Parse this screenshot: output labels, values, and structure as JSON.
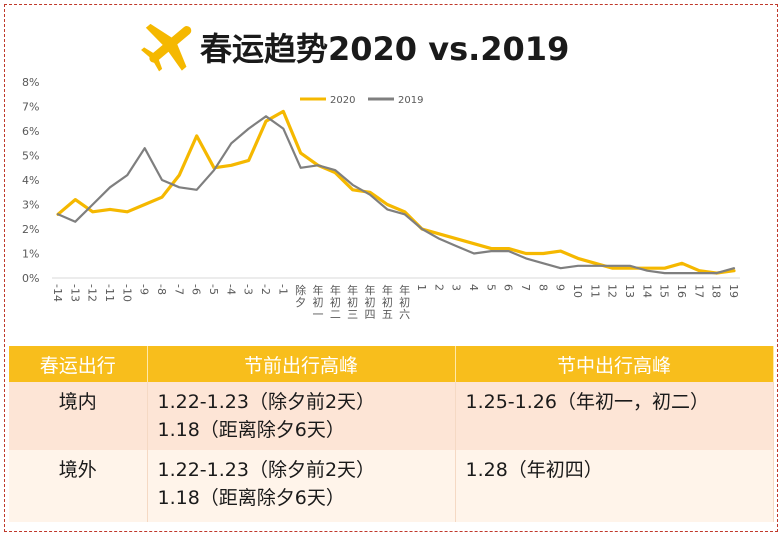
{
  "title": "春运趋势2020 vs.2019",
  "colors": {
    "series2020": "#f5b800",
    "series2019": "#7f7f7f",
    "table_header": "#f8be1c",
    "border": "#c0392b"
  },
  "icon": "airplane-icon",
  "chart_data": {
    "type": "line",
    "title": "春运趋势2020 vs.2019",
    "categories": [
      "-14",
      "-13",
      "-12",
      "-11",
      "-10",
      "-9",
      "-8",
      "-7",
      "-6",
      "-5",
      "-4",
      "-3",
      "-2",
      "-1",
      "除夕",
      "年初一",
      "年初二",
      "年初三",
      "年初四",
      "年初五",
      "年初六",
      "1",
      "2",
      "3",
      "4",
      "5",
      "6",
      "7",
      "8",
      "9",
      "10",
      "11",
      "12",
      "13",
      "14",
      "15",
      "16",
      "17",
      "18",
      "19"
    ],
    "ylim": [
      0,
      8
    ],
    "yticks": [
      "0%",
      "1%",
      "2%",
      "3%",
      "4%",
      "5%",
      "6%",
      "7%",
      "8%"
    ],
    "legend_position": "top-right",
    "grid": false,
    "series": [
      {
        "name": "2020",
        "values": [
          2.6,
          3.2,
          2.7,
          2.8,
          2.7,
          3.0,
          3.3,
          4.2,
          5.8,
          4.5,
          4.6,
          4.8,
          6.4,
          6.8,
          5.1,
          4.6,
          4.3,
          3.6,
          3.5,
          3.0,
          2.7,
          2.0,
          1.8,
          1.6,
          1.4,
          1.2,
          1.2,
          1.0,
          1.0,
          1.1,
          0.8,
          0.6,
          0.4,
          0.4,
          0.4,
          0.4,
          0.6,
          0.3,
          0.2,
          0.3
        ]
      },
      {
        "name": "2019",
        "values": [
          2.6,
          2.3,
          3.0,
          3.7,
          4.2,
          5.3,
          4.0,
          3.7,
          3.6,
          4.4,
          5.5,
          6.1,
          6.6,
          6.1,
          4.5,
          4.6,
          4.4,
          3.8,
          3.4,
          2.8,
          2.6,
          2.0,
          1.6,
          1.3,
          1.0,
          1.1,
          1.1,
          0.8,
          0.6,
          0.4,
          0.5,
          0.5,
          0.5,
          0.5,
          0.3,
          0.2,
          0.2,
          0.2,
          0.2,
          0.4
        ]
      }
    ]
  },
  "table": {
    "headers": [
      "春运出行",
      "节前出行高峰",
      "节中出行高峰"
    ],
    "rows": [
      {
        "region": "境内",
        "pre": [
          "1.22-1.23（除夕前2天）",
          "1.18（距离除夕6天）"
        ],
        "mid": [
          "1.25-1.26（年初一，初二）"
        ]
      },
      {
        "region": "境外",
        "pre": [
          "1.22-1.23（除夕前2天）",
          "1.18（距离除夕6天）"
        ],
        "mid": [
          "1.28（年初四）"
        ]
      }
    ]
  }
}
